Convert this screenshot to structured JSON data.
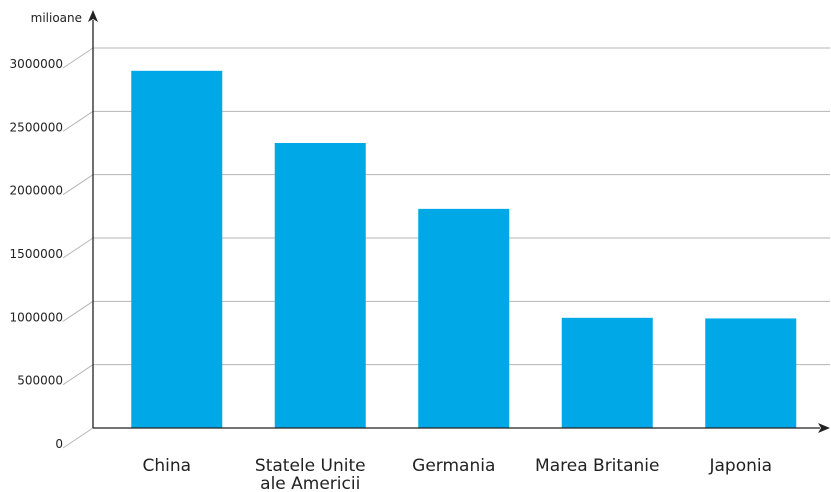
{
  "chart_data": {
    "type": "bar",
    "ylabel": "milioane",
    "xlabel": "",
    "categories": [
      [
        "China"
      ],
      [
        "Statele Unite",
        "ale Americii"
      ],
      [
        "Germania"
      ],
      [
        "Marea Britanie"
      ],
      [
        "Japonia"
      ]
    ],
    "values": [
      2820000,
      2250000,
      1730000,
      870000,
      865000
    ],
    "ylim": [
      0,
      3000000
    ],
    "yticks": [
      "0",
      "500000",
      "1000000",
      "1500000",
      "2000000",
      "2500000",
      "3000000"
    ],
    "grid": true,
    "bar_color": "#00a8e8"
  }
}
